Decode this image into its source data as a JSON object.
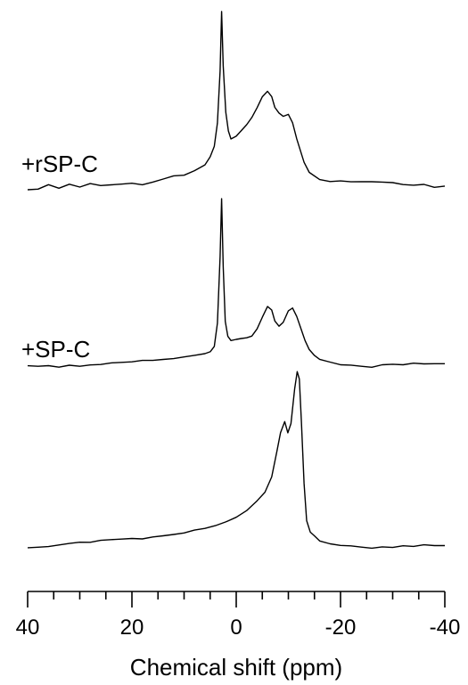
{
  "chart_data": {
    "type": "line",
    "title": "",
    "xlabel": "Chemical shift (ppm)",
    "ylabel": "",
    "xlim": [
      40,
      -40
    ],
    "x_reversed": true,
    "grid": false,
    "xticks": [
      40,
      20,
      0,
      -20,
      -40
    ],
    "xtick_labels": [
      "40",
      "20",
      "0",
      "-20",
      "-40"
    ],
    "series": [
      {
        "name": "+rSP-C",
        "points": [
          [
            40,
            0.0
          ],
          [
            38,
            0.0
          ],
          [
            36,
            0.03
          ],
          [
            34,
            0.0
          ],
          [
            32,
            0.03
          ],
          [
            30,
            0.01
          ],
          [
            28,
            0.04
          ],
          [
            26,
            0.03
          ],
          [
            24,
            0.04
          ],
          [
            22,
            0.05
          ],
          [
            20,
            0.06
          ],
          [
            18,
            0.05
          ],
          [
            16,
            0.07
          ],
          [
            14,
            0.09
          ],
          [
            12,
            0.11
          ],
          [
            10,
            0.11
          ],
          [
            8,
            0.14
          ],
          [
            6,
            0.18
          ],
          [
            5,
            0.24
          ],
          [
            4.2,
            0.32
          ],
          [
            3.6,
            0.5
          ],
          [
            3.1,
            0.9
          ],
          [
            2.8,
            1.36
          ],
          [
            2.5,
            0.95
          ],
          [
            2.0,
            0.6
          ],
          [
            1.5,
            0.46
          ],
          [
            1,
            0.4
          ],
          [
            0,
            0.42
          ],
          [
            -1,
            0.46
          ],
          [
            -2,
            0.5
          ],
          [
            -3,
            0.55
          ],
          [
            -4,
            0.62
          ],
          [
            -5,
            0.7
          ],
          [
            -6,
            0.74
          ],
          [
            -6.8,
            0.7
          ],
          [
            -7.4,
            0.62
          ],
          [
            -8.2,
            0.58
          ],
          [
            -9,
            0.56
          ],
          [
            -10,
            0.58
          ],
          [
            -10.8,
            0.52
          ],
          [
            -11.6,
            0.4
          ],
          [
            -12.4,
            0.3
          ],
          [
            -13,
            0.22
          ],
          [
            -14,
            0.14
          ],
          [
            -16,
            0.08
          ],
          [
            -18,
            0.06
          ],
          [
            -20,
            0.06
          ],
          [
            -22,
            0.05
          ],
          [
            -24,
            0.05
          ],
          [
            -26,
            0.05
          ],
          [
            -28,
            0.05
          ],
          [
            -30,
            0.05
          ],
          [
            -32,
            0.04
          ],
          [
            -34,
            0.04
          ],
          [
            -36,
            0.05
          ],
          [
            -38,
            0.03
          ],
          [
            -40,
            0.04
          ]
        ]
      },
      {
        "name": "+SP-C",
        "points": [
          [
            40,
            0.0
          ],
          [
            38,
            0.0
          ],
          [
            36,
            0.01
          ],
          [
            34,
            0.0
          ],
          [
            32,
            0.02
          ],
          [
            30,
            0.01
          ],
          [
            28,
            0.02
          ],
          [
            26,
            0.02
          ],
          [
            24,
            0.03
          ],
          [
            22,
            0.03
          ],
          [
            20,
            0.03
          ],
          [
            18,
            0.04
          ],
          [
            16,
            0.04
          ],
          [
            14,
            0.05
          ],
          [
            12,
            0.06
          ],
          [
            10,
            0.08
          ],
          [
            8,
            0.1
          ],
          [
            6,
            0.12
          ],
          [
            5,
            0.14
          ],
          [
            4.2,
            0.19
          ],
          [
            3.6,
            0.4
          ],
          [
            3.1,
            1.0
          ],
          [
            2.8,
            1.52
          ],
          [
            2.5,
            0.9
          ],
          [
            2.1,
            0.4
          ],
          [
            1.6,
            0.26
          ],
          [
            1,
            0.22
          ],
          [
            0,
            0.23
          ],
          [
            -1,
            0.24
          ],
          [
            -2,
            0.25
          ],
          [
            -3,
            0.27
          ],
          [
            -4,
            0.34
          ],
          [
            -5,
            0.45
          ],
          [
            -6,
            0.55
          ],
          [
            -6.8,
            0.52
          ],
          [
            -7.4,
            0.42
          ],
          [
            -8.2,
            0.37
          ],
          [
            -9,
            0.4
          ],
          [
            -10,
            0.5
          ],
          [
            -10.8,
            0.52
          ],
          [
            -11.6,
            0.44
          ],
          [
            -12.4,
            0.33
          ],
          [
            -13.2,
            0.22
          ],
          [
            -14,
            0.14
          ],
          [
            -15,
            0.09
          ],
          [
            -16,
            0.06
          ],
          [
            -18,
            0.04
          ],
          [
            -20,
            0.02
          ],
          [
            -22,
            0.02
          ],
          [
            -24,
            0.01
          ],
          [
            -26,
            0.0
          ],
          [
            -28,
            0.02
          ],
          [
            -30,
            0.02
          ],
          [
            -32,
            0.01
          ],
          [
            -34,
            0.02
          ],
          [
            -36,
            0.01
          ],
          [
            -38,
            0.01
          ],
          [
            -40,
            0.01
          ]
        ]
      },
      {
        "name": "",
        "points": [
          [
            40,
            0.0
          ],
          [
            38,
            0.0
          ],
          [
            36,
            0.0
          ],
          [
            34,
            0.01
          ],
          [
            32,
            0.02
          ],
          [
            30,
            0.03
          ],
          [
            28,
            0.03
          ],
          [
            26,
            0.05
          ],
          [
            24,
            0.06
          ],
          [
            22,
            0.07
          ],
          [
            20,
            0.08
          ],
          [
            18,
            0.08
          ],
          [
            16,
            0.1
          ],
          [
            14,
            0.11
          ],
          [
            12,
            0.12
          ],
          [
            10,
            0.13
          ],
          [
            8,
            0.15
          ],
          [
            6,
            0.16
          ],
          [
            4,
            0.18
          ],
          [
            2,
            0.21
          ],
          [
            0,
            0.25
          ],
          [
            -2,
            0.31
          ],
          [
            -4,
            0.4
          ],
          [
            -5.5,
            0.48
          ],
          [
            -6.8,
            0.62
          ],
          [
            -7.8,
            0.85
          ],
          [
            -8.5,
            1.02
          ],
          [
            -9.3,
            1.12
          ],
          [
            -9.9,
            1.02
          ],
          [
            -10.5,
            1.1
          ],
          [
            -11.2,
            1.4
          ],
          [
            -11.7,
            1.55
          ],
          [
            -12.1,
            1.48
          ],
          [
            -12.5,
            1.1
          ],
          [
            -13,
            0.55
          ],
          [
            -13.5,
            0.22
          ],
          [
            -14.2,
            0.12
          ],
          [
            -15,
            0.09
          ],
          [
            -16,
            0.05
          ],
          [
            -18,
            0.03
          ],
          [
            -20,
            0.02
          ],
          [
            -22,
            0.02
          ],
          [
            -24,
            0.01
          ],
          [
            -26,
            0.0
          ],
          [
            -28,
            0.01
          ],
          [
            -30,
            0.0
          ],
          [
            -32,
            0.01
          ],
          [
            -34,
            0.0
          ],
          [
            -36,
            0.01
          ],
          [
            -38,
            0.0
          ],
          [
            -40,
            0.0
          ]
        ]
      }
    ]
  }
}
